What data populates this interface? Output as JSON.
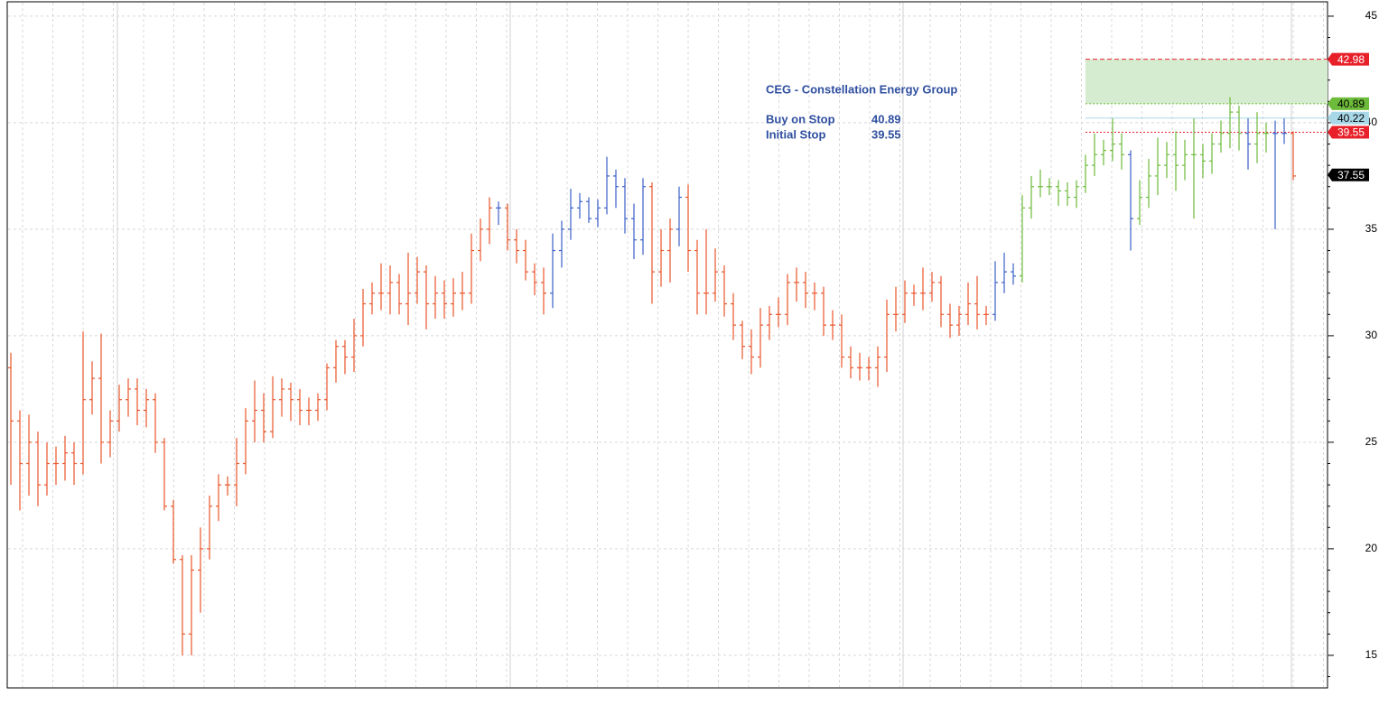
{
  "chart_data": {
    "type": "ohlc",
    "ylim": [
      13.47,
      45.76
    ],
    "yticks": [
      15,
      20,
      25,
      30,
      35,
      40,
      45
    ],
    "grid": true,
    "palette": {
      "R": "#e8552a",
      "B": "#3a5fc8",
      "G": "#6dbb3a"
    },
    "open": [
      28.5,
      26,
      24,
      25,
      23,
      24,
      24,
      24.5,
      24,
      27,
      28,
      25,
      26,
      27,
      27.5,
      26.5,
      27,
      25,
      22,
      19.5,
      16,
      19,
      20,
      22,
      23,
      23,
      24,
      26,
      26.5,
      25.5,
      27,
      27.5,
      27,
      26.5,
      26.5,
      27,
      28.5,
      29.5,
      29,
      30,
      31.5,
      32,
      32,
      32.5,
      31.5,
      32,
      33,
      31.5,
      32,
      31.5,
      32,
      32,
      34,
      35,
      36,
      36,
      34.5,
      34,
      33,
      32.5,
      32,
      34,
      35,
      36,
      36.3,
      35.5,
      36,
      37.5,
      37,
      35.5,
      34.5,
      37,
      33,
      34,
      35,
      36.5,
      34,
      32,
      32,
      33,
      31.5,
      30.5,
      29.5,
      29,
      30.5,
      31,
      31,
      32.5,
      32.5,
      32,
      32,
      30.5,
      30.5,
      29,
      28.5,
      28.5,
      28.5,
      29,
      31,
      31,
      32,
      32,
      32,
      32.5,
      31,
      30.5,
      31,
      31.5,
      31,
      31,
      32.5,
      33,
      32.8,
      36,
      37,
      37,
      37,
      36.8,
      36.5,
      37,
      38,
      38.5,
      38.7,
      39,
      38.5,
      35.5,
      36.5,
      37.5,
      38,
      38.5,
      38,
      38.5,
      38.5,
      38.2,
      39,
      39.5,
      40.5,
      39.5,
      39,
      39.5,
      39.5,
      39.5,
      39.5
    ],
    "high": [
      29.2,
      26.5,
      26.3,
      25.5,
      25,
      24.8,
      25.3,
      25,
      30.2,
      28.8,
      30.1,
      26.5,
      27.7,
      28,
      28,
      27.5,
      27.3,
      25.2,
      22.3,
      19.7,
      19.7,
      21,
      22.5,
      23.5,
      23.4,
      25.2,
      26.6,
      27.9,
      27.3,
      28.1,
      28,
      27.8,
      27.5,
      27.1,
      27.3,
      28.7,
      29.8,
      29.8,
      30.8,
      32.2,
      32.5,
      33.4,
      33.3,
      32.9,
      33.9,
      33.7,
      33.3,
      32.8,
      32.6,
      32.7,
      33,
      34.8,
      35.5,
      36.5,
      36.3,
      36.2,
      35,
      34.5,
      33.4,
      33.2,
      34.8,
      35.4,
      36.9,
      36.7,
      36.5,
      36.4,
      38.4,
      37.8,
      37.4,
      36.2,
      37.4,
      37.2,
      35,
      35.5,
      37,
      37.1,
      34.5,
      35,
      34.1,
      33.3,
      32,
      30.7,
      30.3,
      31.3,
      31.4,
      31.8,
      32.9,
      33.2,
      33,
      32.5,
      32.3,
      31.2,
      31,
      29.5,
      29.2,
      29,
      29.5,
      31.7,
      32.3,
      32.6,
      32.4,
      33.2,
      33,
      32.8,
      31.5,
      31.4,
      32.5,
      32.8,
      31.4,
      33.5,
      33.9,
      33.4,
      36.6,
      37.5,
      37.8,
      37.4,
      37.3,
      37.2,
      37.3,
      38.5,
      39.5,
      39.2,
      40.2,
      39.5,
      38.7,
      37.3,
      38.3,
      39.3,
      39.1,
      39.6,
      39.2,
      40.2,
      39,
      39.5,
      40.1,
      41.2,
      40.8,
      40.2,
      40.5,
      40,
      40.1,
      40.2,
      39.6
    ],
    "low": [
      23,
      21.8,
      22.5,
      22,
      22.5,
      23,
      23.2,
      23,
      23.5,
      26.3,
      24,
      24.3,
      25.5,
      26.2,
      25.8,
      25.7,
      24.5,
      21.8,
      19.3,
      15,
      15,
      17,
      19.5,
      21.3,
      22.5,
      22,
      23.5,
      25,
      25,
      25.2,
      26.2,
      26,
      25.8,
      25.8,
      26,
      26.5,
      27.8,
      28.2,
      28.3,
      29.5,
      31,
      31.2,
      31,
      31,
      30.5,
      31.5,
      30.3,
      30.8,
      30.8,
      30.9,
      31.2,
      31.5,
      33.5,
      34.3,
      35.2,
      34,
      33.4,
      32.6,
      31.9,
      31,
      31.3,
      33.2,
      34.5,
      35.5,
      35.3,
      35.1,
      35.7,
      36,
      34.8,
      33.6,
      33.8,
      31.5,
      32.3,
      32.5,
      34.2,
      33,
      31,
      31,
      31.6,
      30.9,
      29.8,
      28.9,
      28.2,
      28.5,
      29.8,
      30.4,
      30.5,
      31.6,
      31.3,
      31.2,
      30,
      29.8,
      28.5,
      28,
      27.9,
      27.9,
      27.6,
      28.3,
      30.2,
      30.6,
      31.4,
      31.2,
      31.6,
      30.4,
      29.9,
      30,
      30.5,
      30.3,
      30.5,
      30.7,
      32,
      32.4,
      32.5,
      35.5,
      36.5,
      36.6,
      36.1,
      36.1,
      36,
      36.7,
      37.5,
      38,
      38.2,
      37.8,
      34,
      35.2,
      36,
      36.6,
      37.4,
      36.8,
      37.3,
      35.5,
      37.4,
      37.6,
      38.6,
      38.8,
      38.7,
      37.8,
      38.1,
      38.6,
      35,
      39,
      37.3
    ],
    "close": [
      26,
      24,
      25,
      23,
      24,
      24,
      24.5,
      24,
      27,
      28,
      25,
      26,
      27,
      27.5,
      26.5,
      27,
      25,
      22,
      19.5,
      16,
      19,
      20,
      22,
      23,
      23,
      24,
      26,
      26.5,
      25.5,
      27,
      27.5,
      27,
      26.5,
      26.5,
      27,
      28.5,
      29.5,
      29,
      30,
      31.5,
      32,
      32,
      32.5,
      31.5,
      32,
      33,
      31.5,
      32,
      31.5,
      32,
      32,
      34,
      35,
      36,
      36,
      34.5,
      34,
      33,
      32.5,
      32,
      34,
      35,
      36,
      36.3,
      35.5,
      36,
      37.5,
      37,
      35.5,
      34.5,
      37,
      33,
      34,
      35,
      36.5,
      34,
      32,
      32,
      33,
      31.5,
      30.5,
      29.5,
      29,
      30.5,
      31,
      31,
      32.5,
      32.5,
      32,
      32,
      30.5,
      30.5,
      29,
      28.5,
      28.5,
      28.5,
      29,
      31,
      31,
      32,
      32,
      32,
      32.5,
      31,
      30.5,
      31,
      31.5,
      31,
      31,
      32.5,
      33,
      32.8,
      36,
      37,
      37,
      37,
      36.8,
      36.5,
      37,
      38,
      38.5,
      38.7,
      39,
      38.5,
      35.5,
      36.5,
      37.5,
      38,
      38.5,
      38,
      38.5,
      38.5,
      38.2,
      39,
      39.5,
      40.5,
      39.5,
      39,
      39.5,
      39.5,
      39.5,
      39.5,
      37.5
    ],
    "bar_colors": [
      "R",
      "R",
      "R",
      "R",
      "R",
      "R",
      "R",
      "R",
      "R",
      "R",
      "R",
      "R",
      "R",
      "R",
      "R",
      "R",
      "R",
      "R",
      "R",
      "R",
      "R",
      "R",
      "R",
      "R",
      "R",
      "R",
      "R",
      "R",
      "R",
      "R",
      "R",
      "R",
      "R",
      "R",
      "R",
      "R",
      "R",
      "R",
      "R",
      "R",
      "R",
      "R",
      "R",
      "R",
      "R",
      "R",
      "R",
      "R",
      "R",
      "R",
      "R",
      "R",
      "R",
      "R",
      "B",
      "R",
      "R",
      "R",
      "R",
      "R",
      "B",
      "B",
      "B",
      "B",
      "B",
      "B",
      "B",
      "B",
      "B",
      "B",
      "B",
      "R",
      "R",
      "R",
      "B",
      "R",
      "R",
      "R",
      "R",
      "R",
      "R",
      "R",
      "R",
      "R",
      "R",
      "R",
      "R",
      "R",
      "R",
      "R",
      "R",
      "R",
      "R",
      "R",
      "R",
      "R",
      "R",
      "R",
      "R",
      "R",
      "R",
      "R",
      "R",
      "R",
      "R",
      "R",
      "R",
      "R",
      "R",
      "B",
      "B",
      "B",
      "G",
      "G",
      "G",
      "G",
      "G",
      "G",
      "G",
      "G",
      "G",
      "G",
      "G",
      "G",
      "B",
      "G",
      "G",
      "G",
      "G",
      "G",
      "G",
      "G",
      "G",
      "G",
      "G",
      "G",
      "G",
      "B",
      "G",
      "G",
      "B",
      "B",
      "R"
    ],
    "levels": [
      {
        "value": 42.98,
        "color": "#e8202a",
        "text_color": "#ffffff",
        "style": "dashed"
      },
      {
        "value": 40.89,
        "color": "#6dbb3a",
        "text_color": "#000000",
        "style": "dotted"
      },
      {
        "value": 40.22,
        "color": "#a8d8e8",
        "text_color": "#000000",
        "style": "solid"
      },
      {
        "value": 39.55,
        "color": "#e8202a",
        "text_color": "#ffffff",
        "style": "dotted"
      },
      {
        "value": 37.55,
        "color": "#000000",
        "text_color": "#ffffff",
        "style": "none"
      }
    ],
    "zone_color": "#d6ecd0",
    "annotation": {
      "title": "CEG - Constellation Energy Group",
      "rows": [
        [
          "Buy on Stop",
          "40.89"
        ],
        [
          "Initial Stop",
          "39.55"
        ]
      ]
    }
  }
}
